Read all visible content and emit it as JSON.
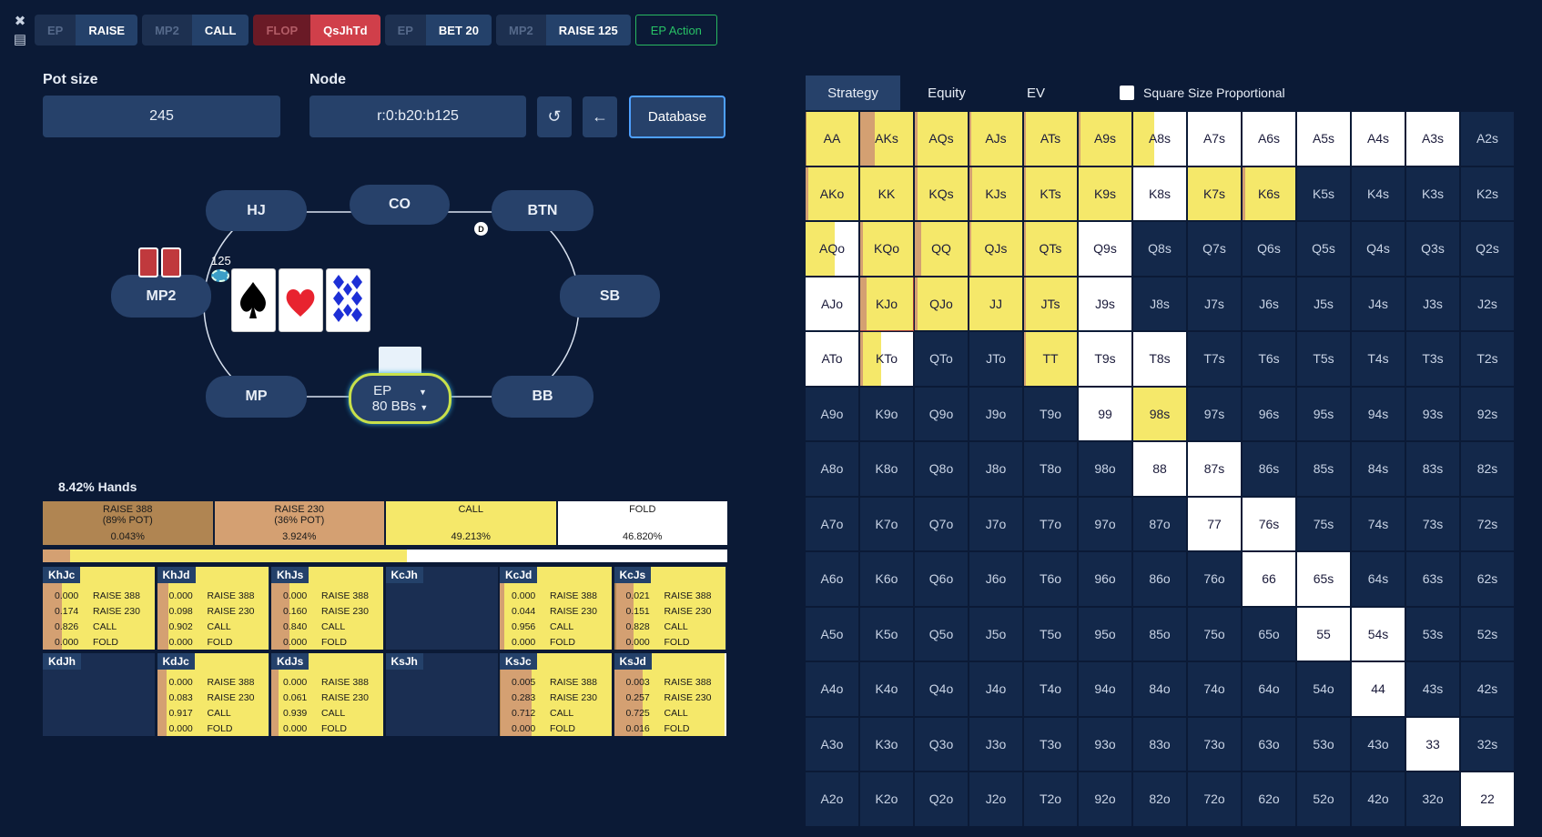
{
  "toolbar": {
    "close_icon": "✖",
    "save_icon": "💾",
    "actions": [
      {
        "pos": "EP",
        "act": "RAISE",
        "type": "normal"
      },
      {
        "pos": "MP2",
        "act": "CALL",
        "type": "normal"
      },
      {
        "pos": "FLOP",
        "act": "QsJhTd",
        "type": "flop"
      },
      {
        "pos": "EP",
        "act": "BET 20",
        "type": "normal"
      },
      {
        "pos": "MP2",
        "act": "RAISE 125",
        "type": "normal"
      }
    ],
    "ep_action": "EP Action"
  },
  "pot": {
    "label": "Pot size",
    "value": "245"
  },
  "node": {
    "label": "Node",
    "value": "r:0:b20:b125"
  },
  "buttons": {
    "undo_icon": "↺",
    "back_icon": "←",
    "database": "Database"
  },
  "table": {
    "seats": {
      "hj": "HJ",
      "co": "CO",
      "btn": "BTN",
      "mp2": "MP2",
      "sb": "SB",
      "mp": "MP",
      "bb": "BB"
    },
    "dealer": "D",
    "bet": "125",
    "ep_seat": {
      "pos": "EP",
      "stack": "80 BBs"
    }
  },
  "summary": {
    "hands": "8.42% Hands",
    "actions": [
      {
        "l1": "RAISE 388",
        "l2": "(89% POT)",
        "pct": "0.043%",
        "color": "#b08552"
      },
      {
        "l1": "RAISE 230",
        "l2": "(36% POT)",
        "pct": "3.924%",
        "color": "#d4a072"
      },
      {
        "l1": "CALL",
        "l2": "",
        "pct": "49.213%",
        "color": "#f5e86a"
      },
      {
        "l1": "FOLD",
        "l2": "",
        "pct": "46.820%",
        "color": "#ffffff"
      }
    ],
    "bar": [
      0.0004,
      0.0392,
      0.4921,
      0.4682
    ]
  },
  "combos": [
    {
      "name": "KhJc",
      "vals": [
        "0.000",
        "0.174",
        "0.826",
        "0.000"
      ]
    },
    {
      "name": "KhJd",
      "vals": [
        "0.000",
        "0.098",
        "0.902",
        "0.000"
      ]
    },
    {
      "name": "KhJs",
      "vals": [
        "0.000",
        "0.160",
        "0.840",
        "0.000"
      ]
    },
    {
      "name": "KcJh",
      "vals": null
    },
    {
      "name": "KcJd",
      "vals": [
        "0.000",
        "0.044",
        "0.956",
        "0.000"
      ]
    },
    {
      "name": "KcJs",
      "vals": [
        "0.021",
        "0.151",
        "0.828",
        "0.000"
      ]
    },
    {
      "name": "KdJh",
      "vals": null
    },
    {
      "name": "KdJc",
      "vals": [
        "0.000",
        "0.083",
        "0.917",
        "0.000"
      ]
    },
    {
      "name": "KdJs",
      "vals": [
        "0.000",
        "0.061",
        "0.939",
        "0.000"
      ]
    },
    {
      "name": "KsJh",
      "vals": null
    },
    {
      "name": "KsJc",
      "vals": [
        "0.005",
        "0.283",
        "0.712",
        "0.000"
      ]
    },
    {
      "name": "KsJd",
      "vals": [
        "0.003",
        "0.257",
        "0.725",
        "0.016"
      ]
    }
  ],
  "combo_actions": [
    "RAISE 388",
    "RAISE 230",
    "CALL",
    "FOLD"
  ],
  "strategy": {
    "tabs": [
      "Strategy",
      "Equity",
      "EV"
    ],
    "proportional": "Square Size Proportional",
    "ranks": [
      "A",
      "K",
      "Q",
      "J",
      "T",
      "9",
      "8",
      "7",
      "6",
      "5",
      "4",
      "3",
      "2"
    ],
    "active": {
      "AA": [
        0.02,
        0.0,
        0.98,
        0.0
      ],
      "AKs": [
        0.0,
        0.28,
        0.72,
        0.0
      ],
      "AQs": [
        0.0,
        0.05,
        0.95,
        0.0
      ],
      "AJs": [
        0.0,
        0.03,
        0.97,
        0.0
      ],
      "ATs": [
        0.0,
        0.03,
        0.97,
        0.0
      ],
      "A9s": [
        0.0,
        0.03,
        0.97,
        0.0
      ],
      "A8s": [
        0.0,
        0.0,
        0.4,
        0.6
      ],
      "A7s": [
        0.0,
        0.0,
        0.0,
        1.0
      ],
      "A6s": [
        0.0,
        0.0,
        0.0,
        1.0
      ],
      "A5s": [
        0.0,
        0.0,
        0.0,
        1.0
      ],
      "A4s": [
        0.0,
        0.0,
        0.0,
        1.0
      ],
      "A3s": [
        0.0,
        0.0,
        0.0,
        1.0
      ],
      "AKo": [
        0.0,
        0.05,
        0.95,
        0.0
      ],
      "KK": [
        0.0,
        0.0,
        1.0,
        0.0
      ],
      "KQs": [
        0.0,
        0.05,
        0.95,
        0.0
      ],
      "KJs": [
        0.0,
        0.05,
        0.95,
        0.0
      ],
      "KTs": [
        0.0,
        0.03,
        0.97,
        0.0
      ],
      "K9s": [
        0.0,
        0.0,
        1.0,
        0.0
      ],
      "K8s": [
        0.0,
        0.0,
        0.0,
        1.0
      ],
      "K7s": [
        0.0,
        0.0,
        1.0,
        0.0
      ],
      "K6s": [
        0.0,
        0.05,
        0.95,
        0.0
      ],
      "AQo": [
        0.0,
        0.0,
        0.55,
        0.45
      ],
      "KQo": [
        0.0,
        0.05,
        0.95,
        0.0
      ],
      "QQ": [
        0.0,
        0.12,
        0.88,
        0.0
      ],
      "QJs": [
        0.0,
        0.04,
        0.96,
        0.0
      ],
      "QTs": [
        0.0,
        0.03,
        0.97,
        0.0
      ],
      "Q9s": [
        0.0,
        0.0,
        0.0,
        1.0
      ],
      "AJo": [
        0.0,
        0.0,
        0.0,
        1.0
      ],
      "KJo": [
        0.0,
        0.12,
        0.88,
        0.0
      ],
      "QJo": [
        0.0,
        0.05,
        0.95,
        0.0
      ],
      "JJ": [
        0.0,
        0.0,
        1.0,
        0.0
      ],
      "JTs": [
        0.0,
        0.04,
        0.96,
        0.0
      ],
      "J9s": [
        0.0,
        0.0,
        0.0,
        1.0
      ],
      "ATo": [
        0.0,
        0.0,
        0.0,
        1.0
      ],
      "KTo": [
        0.0,
        0.05,
        0.35,
        0.6
      ],
      "TT": [
        0.0,
        0.04,
        0.96,
        0.0
      ],
      "T9s": [
        0.0,
        0.0,
        0.0,
        1.0
      ],
      "T8s": [
        0.0,
        0.0,
        0.0,
        1.0
      ],
      "99": [
        0.0,
        0.0,
        0.0,
        1.0
      ],
      "98s": [
        0.0,
        0.0,
        1.0,
        0.0
      ],
      "88": [
        0.0,
        0.0,
        0.0,
        1.0
      ],
      "87s": [
        0.0,
        0.0,
        0.0,
        1.0
      ],
      "77": [
        0.0,
        0.0,
        0.0,
        1.0
      ],
      "76s": [
        0.0,
        0.0,
        0.0,
        1.0
      ],
      "66": [
        0.0,
        0.0,
        0.0,
        1.0
      ],
      "65s": [
        0.0,
        0.0,
        0.0,
        1.0
      ],
      "55": [
        0.0,
        0.0,
        0.0,
        1.0
      ],
      "54s": [
        0.0,
        0.0,
        0.0,
        1.0
      ],
      "44": [
        0.0,
        0.0,
        0.0,
        1.0
      ],
      "33": [
        0.0,
        0.0,
        0.0,
        1.0
      ],
      "22": [
        0.0,
        0.0,
        0.0,
        1.0
      ]
    },
    "selected": "KJo"
  },
  "colors": {
    "raise388": "#b08552",
    "raise230": "#d4a072",
    "call": "#f5e86a",
    "fold": "#ffffff",
    "empty": "#13284a"
  }
}
